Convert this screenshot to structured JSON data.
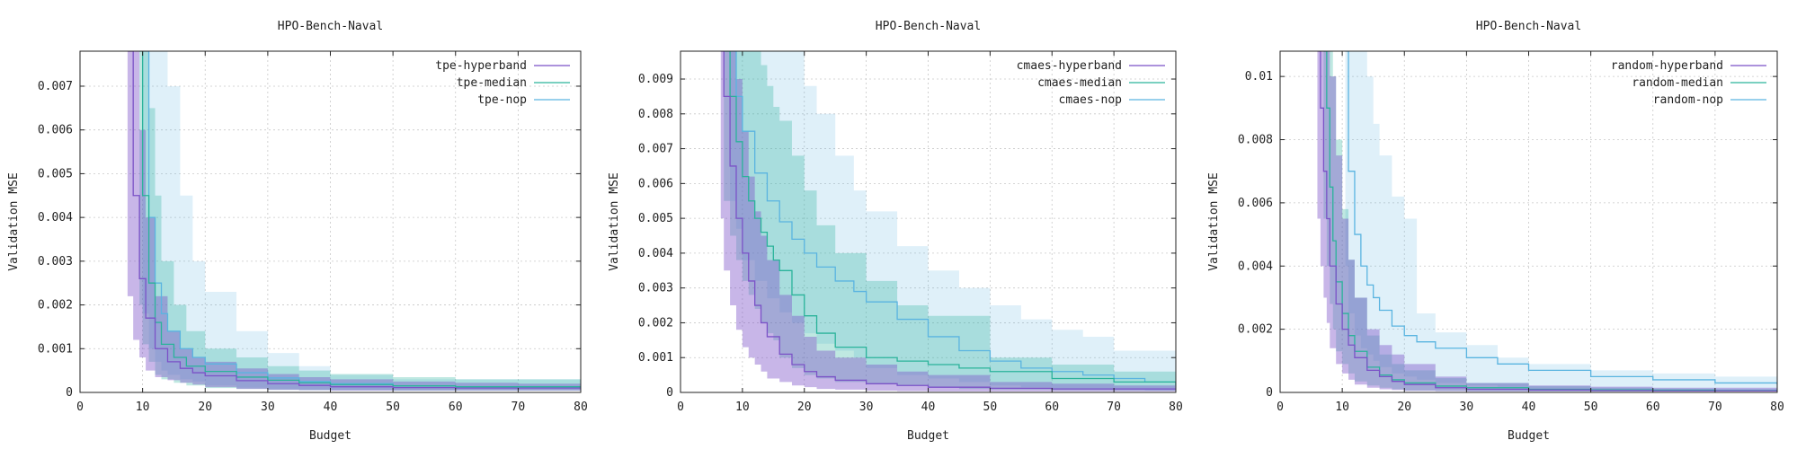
{
  "chart_data": [
    {
      "type": "line",
      "title": "HPO-Bench-Naval",
      "xlabel": "Budget",
      "ylabel": "Validation MSE",
      "xlim": [
        0,
        80
      ],
      "ylim": [
        0,
        0.0078
      ],
      "xticks": [
        "0",
        "10",
        "20",
        "30",
        "40",
        "50",
        "60",
        "70",
        "80"
      ],
      "yticks": [
        "0",
        "0.001",
        "0.002",
        "0.003",
        "0.004",
        "0.005",
        "0.006",
        "0.007"
      ],
      "grid": true,
      "legend_position": "top-right",
      "series": [
        {
          "name": "tpe-hyperband",
          "color": "#7b52c7",
          "x": [
            7.6,
            8.5,
            9.5,
            10.5,
            12,
            14,
            16,
            18,
            20,
            25,
            30,
            35,
            40,
            50,
            60,
            70,
            80
          ],
          "y": [
            0.0078,
            0.0045,
            0.0026,
            0.0017,
            0.001,
            0.0007,
            0.00055,
            0.00045,
            0.00038,
            0.00027,
            0.0002,
            0.00016,
            0.00013,
            0.00011,
            0.0001,
            0.0001,
            0.0001
          ],
          "band_low": [
            0.004,
            0.0022,
            0.0012,
            0.0008,
            0.0005,
            0.00035,
            0.00028,
            0.00022,
            0.00018,
            0.00012,
            8e-05,
            6e-05,
            5e-05,
            4e-05,
            4e-05,
            4e-05,
            4e-05
          ],
          "band_high": [
            0.0078,
            0.0078,
            0.006,
            0.004,
            0.0022,
            0.0014,
            0.001,
            0.0008,
            0.0007,
            0.00055,
            0.00042,
            0.00035,
            0.0003,
            0.00025,
            0.00022,
            0.0002,
            0.0002
          ]
        },
        {
          "name": "tpe-median",
          "color": "#2ab39a",
          "x": [
            9.5,
            10,
            11,
            12,
            13,
            15,
            17,
            20,
            25,
            30,
            35,
            40,
            50,
            60,
            70,
            80
          ],
          "y": [
            0.0078,
            0.0045,
            0.0025,
            0.0016,
            0.0011,
            0.0008,
            0.0006,
            0.00048,
            0.00035,
            0.00028,
            0.00022,
            0.00018,
            0.00015,
            0.00013,
            0.00013,
            0.00013
          ],
          "band_low": [
            0.004,
            0.002,
            0.0011,
            0.0007,
            0.0004,
            0.0003,
            0.00022,
            0.00016,
            0.0001,
            8e-05,
            6e-05,
            5e-05,
            5e-05,
            4e-05,
            4e-05,
            4e-05
          ],
          "band_high": [
            0.0078,
            0.0078,
            0.0065,
            0.0045,
            0.003,
            0.002,
            0.0014,
            0.001,
            0.0008,
            0.0006,
            0.0005,
            0.00042,
            0.00035,
            0.0003,
            0.0003,
            0.0003
          ]
        },
        {
          "name": "tpe-nop",
          "color": "#5ab4e0",
          "x": [
            10,
            11,
            12,
            13,
            14,
            16,
            18,
            20,
            25,
            30,
            35,
            40,
            50,
            60,
            70,
            80
          ],
          "y": [
            0.0078,
            0.004,
            0.0025,
            0.0018,
            0.0014,
            0.001,
            0.0008,
            0.00065,
            0.00045,
            0.00033,
            0.00025,
            0.0002,
            0.00015,
            0.00013,
            0.00013,
            0.00013
          ],
          "band_low": [
            0.004,
            0.0018,
            0.001,
            0.0007,
            0.0005,
            0.0004,
            0.0003,
            0.00025,
            0.00016,
            0.00011,
            8e-05,
            6e-05,
            5e-05,
            5e-05,
            5e-05,
            5e-05
          ],
          "band_high": [
            0.0078,
            0.0078,
            0.0078,
            0.0078,
            0.007,
            0.0045,
            0.003,
            0.0023,
            0.0014,
            0.0009,
            0.0006,
            0.0004,
            0.0003,
            0.0003,
            0.0003,
            0.0003
          ]
        }
      ]
    },
    {
      "type": "line",
      "title": "HPO-Bench-Naval",
      "xlabel": "Budget",
      "ylabel": "Validation MSE",
      "xlim": [
        0,
        80
      ],
      "ylim": [
        0,
        0.0098
      ],
      "xticks": [
        "0",
        "10",
        "20",
        "30",
        "40",
        "50",
        "60",
        "70",
        "80"
      ],
      "yticks": [
        "0",
        "0.001",
        "0.002",
        "0.003",
        "0.004",
        "0.005",
        "0.006",
        "0.007",
        "0.008",
        "0.009"
      ],
      "grid": true,
      "legend_position": "top-right",
      "series": [
        {
          "name": "cmaes-hyperband",
          "color": "#7b52c7",
          "x": [
            6.5,
            7,
            8,
            9,
            10,
            11,
            12,
            13,
            14,
            16,
            18,
            20,
            22,
            25,
            30,
            35,
            40,
            50,
            60,
            70,
            80
          ],
          "y": [
            0.0098,
            0.0085,
            0.0065,
            0.005,
            0.004,
            0.0032,
            0.0025,
            0.002,
            0.0016,
            0.0011,
            0.0008,
            0.0006,
            0.00045,
            0.00035,
            0.00025,
            0.0002,
            0.00015,
            0.00012,
            0.0001,
            0.0001,
            0.0001
          ],
          "band_low": [
            0.006,
            0.005,
            0.0035,
            0.0025,
            0.0018,
            0.0013,
            0.001,
            0.0008,
            0.0006,
            0.0004,
            0.0003,
            0.0002,
            0.00015,
            0.0001,
            8e-05,
            5e-05,
            4e-05,
            3e-05,
            3e-05,
            3e-05,
            3e-05
          ],
          "band_high": [
            0.0098,
            0.0098,
            0.0098,
            0.009,
            0.0075,
            0.0062,
            0.0052,
            0.0045,
            0.0038,
            0.0028,
            0.0022,
            0.0016,
            0.0012,
            0.001,
            0.0008,
            0.0006,
            0.0005,
            0.0003,
            0.00025,
            0.0002,
            0.0002
          ]
        },
        {
          "name": "cmaes-median",
          "color": "#2ab39a",
          "x": [
            7,
            8,
            9,
            10,
            11,
            12,
            13,
            14,
            15,
            16,
            18,
            20,
            22,
            25,
            30,
            35,
            40,
            45,
            50,
            60,
            70,
            80
          ],
          "y": [
            0.0098,
            0.0085,
            0.0072,
            0.0062,
            0.0055,
            0.005,
            0.0046,
            0.0042,
            0.0038,
            0.0035,
            0.0028,
            0.0022,
            0.0017,
            0.0013,
            0.001,
            0.0009,
            0.0008,
            0.0007,
            0.0006,
            0.0004,
            0.0003,
            0.0002
          ],
          "band_low": [
            0.0065,
            0.0055,
            0.0045,
            0.0038,
            0.0032,
            0.0028,
            0.0024,
            0.002,
            0.0017,
            0.0015,
            0.001,
            0.0007,
            0.0005,
            0.0004,
            0.0003,
            0.00025,
            0.0002,
            0.00015,
            0.0001,
            8e-05,
            6e-05,
            5e-05
          ],
          "band_high": [
            0.0098,
            0.0098,
            0.0098,
            0.0098,
            0.0098,
            0.0098,
            0.0094,
            0.0088,
            0.0082,
            0.0078,
            0.0068,
            0.0058,
            0.0048,
            0.004,
            0.0032,
            0.0025,
            0.0022,
            0.0022,
            0.001,
            0.0008,
            0.0006,
            0.0005
          ]
        },
        {
          "name": "cmaes-nop",
          "color": "#5ab4e0",
          "x": [
            8,
            9,
            10,
            12,
            14,
            16,
            18,
            20,
            22,
            25,
            28,
            30,
            35,
            40,
            45,
            50,
            55,
            60,
            65,
            70,
            75,
            80
          ],
          "y": [
            0.0098,
            0.0085,
            0.0075,
            0.0063,
            0.0055,
            0.0049,
            0.0044,
            0.004,
            0.0036,
            0.0032,
            0.0029,
            0.0026,
            0.0021,
            0.0016,
            0.0012,
            0.0009,
            0.0007,
            0.0006,
            0.0005,
            0.0004,
            0.0003,
            0.0002
          ],
          "band_low": [
            0.0065,
            0.0055,
            0.0047,
            0.0038,
            0.0032,
            0.0027,
            0.0023,
            0.002,
            0.0017,
            0.0014,
            0.0012,
            0.001,
            0.0007,
            0.0005,
            0.0004,
            0.0003,
            0.0002,
            0.00015,
            0.0001,
            0.0001,
            8e-05,
            5e-05
          ],
          "band_high": [
            0.0098,
            0.0098,
            0.0098,
            0.0098,
            0.0098,
            0.0098,
            0.0098,
            0.0088,
            0.008,
            0.0068,
            0.0058,
            0.0052,
            0.0042,
            0.0035,
            0.003,
            0.0025,
            0.0021,
            0.0018,
            0.0016,
            0.0012,
            0.0012,
            0.0004
          ]
        }
      ]
    },
    {
      "type": "line",
      "title": "HPO-Bench-Naval",
      "xlabel": "Budget",
      "ylabel": "Validation MSE",
      "xlim": [
        0,
        80
      ],
      "ylim": [
        0,
        0.0108
      ],
      "xticks": [
        "0",
        "10",
        "20",
        "30",
        "40",
        "50",
        "60",
        "70",
        "80"
      ],
      "yticks": [
        "0",
        "0.002",
        "0.004",
        "0.006",
        "0.008",
        "0.01"
      ],
      "grid": true,
      "legend_position": "top-right",
      "series": [
        {
          "name": "random-hyperband",
          "color": "#7b52c7",
          "x": [
            6,
            6.5,
            7,
            7.5,
            8,
            9,
            10,
            11,
            12,
            14,
            16,
            18,
            20,
            25,
            30,
            40,
            50,
            60,
            70,
            80
          ],
          "y": [
            0.0108,
            0.009,
            0.007,
            0.0055,
            0.004,
            0.0028,
            0.002,
            0.0015,
            0.0011,
            0.0007,
            0.0005,
            0.00035,
            0.00025,
            0.00015,
            0.0001,
            8e-05,
            6e-05,
            5e-05,
            5e-05,
            5e-05
          ],
          "band_low": [
            0.007,
            0.0055,
            0.004,
            0.003,
            0.0022,
            0.0014,
            0.0009,
            0.0006,
            0.0004,
            0.00025,
            0.00015,
            0.0001,
            8e-05,
            5e-05,
            4e-05,
            3e-05,
            3e-05,
            3e-05,
            3e-05,
            3e-05
          ],
          "band_high": [
            0.0108,
            0.0108,
            0.0108,
            0.0108,
            0.01,
            0.0075,
            0.0055,
            0.0042,
            0.003,
            0.002,
            0.0015,
            0.0012,
            0.0009,
            0.0005,
            0.0003,
            0.00022,
            0.00018,
            0.00015,
            0.00015,
            0.00015
          ]
        },
        {
          "name": "random-median",
          "color": "#2ab39a",
          "x": [
            7,
            7.5,
            8,
            8.5,
            9,
            10,
            11,
            12,
            14,
            16,
            18,
            20,
            25,
            30,
            40,
            50,
            60,
            70,
            80
          ],
          "y": [
            0.0108,
            0.009,
            0.0065,
            0.0048,
            0.0035,
            0.0025,
            0.0018,
            0.0013,
            0.0008,
            0.00055,
            0.0004,
            0.0003,
            0.0002,
            0.00015,
            0.0001,
            8e-05,
            7e-05,
            6e-05,
            6e-05
          ],
          "band_low": [
            0.007,
            0.0055,
            0.004,
            0.0028,
            0.002,
            0.0013,
            0.0009,
            0.0006,
            0.00035,
            0.00022,
            0.00015,
            0.0001,
            6e-05,
            5e-05,
            4e-05,
            3e-05,
            3e-05,
            3e-05,
            3e-05
          ],
          "band_high": [
            0.0108,
            0.0108,
            0.0108,
            0.01,
            0.008,
            0.0058,
            0.0042,
            0.003,
            0.0018,
            0.0012,
            0.0009,
            0.0007,
            0.00045,
            0.0003,
            0.0002,
            0.00015,
            0.00012,
            0.0001,
            0.0001
          ]
        },
        {
          "name": "random-nop",
          "color": "#5ab4e0",
          "x": [
            10.5,
            11,
            12,
            13,
            14,
            15,
            16,
            18,
            20,
            22,
            25,
            30,
            35,
            40,
            50,
            60,
            70,
            80
          ],
          "y": [
            0.0108,
            0.007,
            0.005,
            0.004,
            0.0034,
            0.003,
            0.0026,
            0.0021,
            0.0018,
            0.0016,
            0.0014,
            0.0011,
            0.0009,
            0.0007,
            0.0005,
            0.0004,
            0.0003,
            0.00025
          ],
          "band_low": [
            0.007,
            0.004,
            0.0025,
            0.0018,
            0.0014,
            0.0012,
            0.001,
            0.0008,
            0.0006,
            0.0005,
            0.0004,
            0.0003,
            0.00022,
            0.00018,
            0.00012,
            0.0001,
            8e-05,
            7e-05
          ],
          "band_high": [
            0.0108,
            0.0108,
            0.0108,
            0.0108,
            0.01,
            0.0085,
            0.0075,
            0.0062,
            0.0055,
            0.0025,
            0.0019,
            0.0015,
            0.0011,
            0.0009,
            0.0007,
            0.0006,
            0.0005,
            0.0004
          ]
        }
      ]
    }
  ]
}
